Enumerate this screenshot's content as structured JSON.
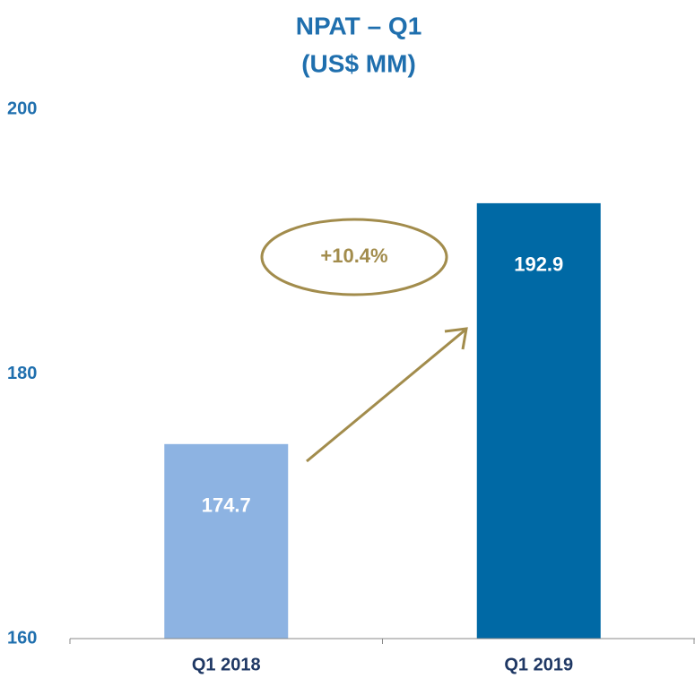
{
  "chart_data": {
    "type": "bar",
    "title": "NPAT – Q1",
    "subtitle": "(US$ MM)",
    "categories": [
      "Q1 2018",
      "Q1 2019"
    ],
    "values": [
      174.7,
      192.9
    ],
    "colors": [
      "#8db3e2",
      "#0069a5"
    ],
    "ylim": [
      160,
      200
    ],
    "yticks": [
      160,
      180,
      200
    ],
    "annotation": "+10.4%"
  }
}
